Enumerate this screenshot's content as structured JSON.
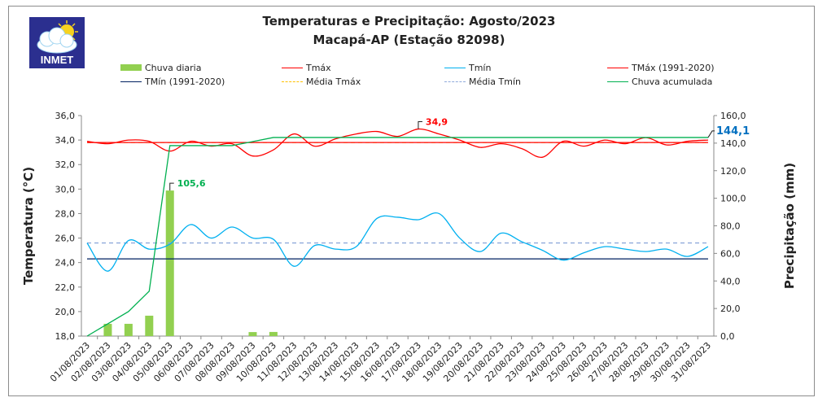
{
  "header": {
    "logo_text": "INMET",
    "title_line1": "Temperaturas e Precipitação: Agosto/2023",
    "title_line2": "Macapá-AP (Estação 82098)"
  },
  "chart_data": {
    "type": "line",
    "title": "Temperaturas e Precipitação: Agosto/2023 — Macapá-AP (Estação 82098)",
    "xlabel": "",
    "ylabel": "Temperatura (°C)",
    "y2label": "Precipitação (mm)",
    "ylim": [
      18,
      36
    ],
    "y2lim": [
      0,
      160
    ],
    "yticks": [
      "18,0",
      "20,0",
      "22,0",
      "24,0",
      "26,0",
      "28,0",
      "30,0",
      "32,0",
      "34,0",
      "36,0"
    ],
    "y2ticks": [
      "0,0",
      "20,0",
      "40,0",
      "60,0",
      "80,0",
      "100,0",
      "120,0",
      "140,0",
      "160,0"
    ],
    "legend_position": "top",
    "grid": false,
    "categories": [
      "01/08/2023",
      "02/08/2023",
      "03/08/2023",
      "04/08/2023",
      "05/08/2023",
      "06/08/2023",
      "07/08/2023",
      "08/08/2023",
      "09/08/2023",
      "10/08/2023",
      "11/08/2023",
      "12/08/2023",
      "13/08/2023",
      "14/08/2023",
      "15/08/2023",
      "16/08/2023",
      "17/08/2023",
      "18/08/2023",
      "19/08/2023",
      "20/08/2023",
      "21/08/2023",
      "22/08/2023",
      "23/08/2023",
      "24/08/2023",
      "25/08/2023",
      "26/08/2023",
      "27/08/2023",
      "28/08/2023",
      "29/08/2023",
      "30/08/2023",
      "31/08/2023"
    ],
    "series": [
      {
        "name": "Chuva diaria",
        "kind": "bar",
        "axis": "right",
        "color": "#92d050",
        "values": [
          0,
          8.9,
          8.9,
          14.8,
          105.6,
          0,
          0,
          0,
          2.9,
          3.0,
          0,
          0,
          0,
          0,
          0,
          0,
          0,
          0,
          0,
          0,
          0,
          0,
          0,
          0,
          0,
          0,
          0,
          0,
          0,
          0,
          0
        ]
      },
      {
        "name": "Tmáx",
        "kind": "smooth-line",
        "axis": "left",
        "color": "#ff0000",
        "values": [
          33.9,
          33.7,
          34.0,
          33.9,
          33.1,
          33.9,
          33.5,
          33.7,
          32.7,
          33.2,
          34.5,
          33.5,
          34.1,
          34.5,
          34.7,
          34.3,
          34.9,
          34.5,
          34.0,
          33.4,
          33.7,
          33.3,
          32.6,
          33.9,
          33.5,
          34.0,
          33.7,
          34.2,
          33.6,
          33.9,
          34.0
        ]
      },
      {
        "name": "Tmín",
        "kind": "smooth-line",
        "axis": "left",
        "color": "#00b0f0",
        "values": [
          25.6,
          23.3,
          25.8,
          25.1,
          25.5,
          27.1,
          26.0,
          26.9,
          26.0,
          25.9,
          23.7,
          25.4,
          25.1,
          25.3,
          27.6,
          27.7,
          27.5,
          28.0,
          26.0,
          24.9,
          26.4,
          25.7,
          25.0,
          24.2,
          24.8,
          25.3,
          25.1,
          24.9,
          25.1,
          24.5,
          25.3
        ]
      },
      {
        "name": "TMáx (1991-2020)",
        "kind": "line",
        "axis": "left",
        "color": "#ff0000",
        "constant": 33.8
      },
      {
        "name": "TMín (1991-2020)",
        "kind": "line",
        "axis": "left",
        "color": "#002060",
        "constant": 24.3
      },
      {
        "name": "Média Tmáx",
        "kind": "dashed-line",
        "axis": "left",
        "color": "#ffc000",
        "constant": 33.8
      },
      {
        "name": "Média Tmín",
        "kind": "dashed-line",
        "axis": "left",
        "color": "#8faadc",
        "constant": 25.6
      },
      {
        "name": "Chuva acumulada",
        "kind": "line",
        "axis": "right",
        "color": "#00b050",
        "values": [
          0,
          8.9,
          17.8,
          32.6,
          138.2,
          138.2,
          138.2,
          138.2,
          141.1,
          144.1,
          144.1,
          144.1,
          144.1,
          144.1,
          144.1,
          144.1,
          144.1,
          144.1,
          144.1,
          144.1,
          144.1,
          144.1,
          144.1,
          144.1,
          144.1,
          144.1,
          144.1,
          144.1,
          144.1,
          144.1,
          144.1
        ]
      }
    ],
    "annotations": [
      {
        "text": "105,6",
        "series": "Chuva diaria",
        "index": 4,
        "color": "#00b050"
      },
      {
        "text": "34,9",
        "series": "Tmáx",
        "index": 16,
        "color": "#ff0000"
      },
      {
        "text": "144,1",
        "series": "Chuva acumulada",
        "index": 30,
        "color": "#0070c0"
      }
    ]
  },
  "legend": [
    {
      "label": "Chuva diaria",
      "type": "box",
      "color": "#92d050"
    },
    {
      "label": "Tmáx",
      "type": "line",
      "color": "#ff0000"
    },
    {
      "label": "Tmín",
      "type": "line",
      "color": "#00b0f0"
    },
    {
      "label": "TMáx (1991-2020)",
      "type": "line",
      "color": "#ff0000"
    },
    {
      "label": "TMín (1991-2020)",
      "type": "line",
      "color": "#002060"
    },
    {
      "label": "Média Tmáx",
      "type": "dash",
      "color": "#ffc000"
    },
    {
      "label": "Média Tmín",
      "type": "dash",
      "color": "#8faadc"
    },
    {
      "label": "Chuva acumulada",
      "type": "line",
      "color": "#00b050"
    }
  ]
}
